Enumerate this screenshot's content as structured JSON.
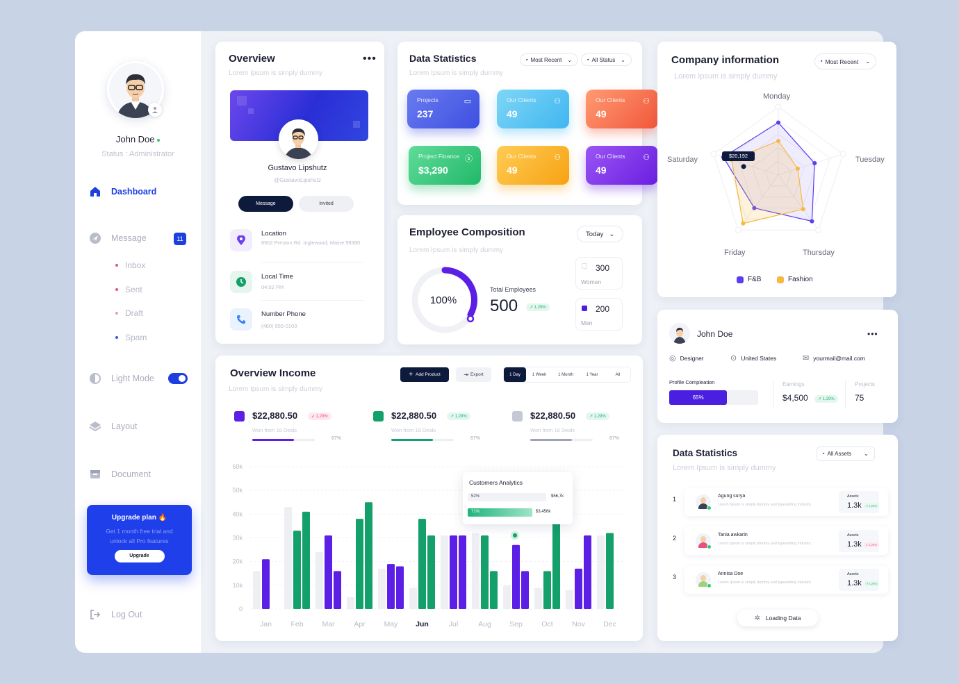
{
  "profile": {
    "name": "John Doe",
    "status": "Status : Administrator"
  },
  "nav": {
    "dashboard": "Dashboard",
    "message": "Message",
    "message_count": "11",
    "sub": [
      "Inbox",
      "Sent",
      "Draft",
      "Spam"
    ],
    "light_mode": "Light Mode",
    "layout": "Layout",
    "document": "Document",
    "logout": "Log Out"
  },
  "upgrade": {
    "title": "Upgrade plan 🔥",
    "text": "Get 1 month free trial and unlock all Pro features",
    "button": "Upgrade"
  },
  "overview": {
    "title": "Overview",
    "subtitle": "Lorem Ipsum is simply dummy",
    "name": "Gustavo Lipshutz",
    "handle": "@GustavoLipshutz",
    "btn_message": "Message",
    "btn_invited": "Invited",
    "location_label": "Location",
    "location_value": "8502 Preston Rd. Inglewood, Maine 98380",
    "time_label": "Local Time",
    "time_value": "04:02 PM",
    "phone_label": "Number Phone",
    "phone_value": "(480) 555-0103"
  },
  "data_stats": {
    "title": "Data Statistics",
    "subtitle": "Lorem Ipsum is simply dummy",
    "filter1": "Most Recent",
    "filter2": "All Status",
    "tiles": [
      {
        "label": "Projects",
        "value": "237"
      },
      {
        "label": "Our Clients",
        "value": "49"
      },
      {
        "label": "Our Clients",
        "value": "49"
      },
      {
        "label": "Project Finance",
        "value": "$3,290"
      },
      {
        "label": "Our Clients",
        "value": "49"
      },
      {
        "label": "Our Clients",
        "value": "49"
      }
    ]
  },
  "employee": {
    "title": "Employee Composition",
    "subtitle": "Lorem Ipsum is simply dummy",
    "filter": "Today",
    "percent": "100%",
    "total_label": "Total Employees",
    "total": "500",
    "change": "↗ 1,29%",
    "women": "300",
    "women_label": "Women",
    "men": "200",
    "men_label": "Men"
  },
  "income": {
    "title": "Overview Income",
    "subtitle": "Lorem Ipsum is simply dummy",
    "add_product": "Add Product",
    "export": "Export",
    "ranges": [
      "1 Day",
      "1 Week",
      "1 Month",
      "1 Year",
      "All"
    ],
    "summaries": [
      {
        "value": "$22,880.50",
        "change": "↙ 1,29%",
        "sub": "Won from 18 Deals",
        "pct": "67%",
        "fill": 0.67
      },
      {
        "value": "$22,880.50",
        "change": "↗ 1,29%",
        "sub": "Won from 18 Deals",
        "pct": "67%",
        "fill": 0.67
      },
      {
        "value": "$22,880.50",
        "change": "↗ 1,29%",
        "sub": "Won from 18 Deals",
        "pct": "67%",
        "fill": 0.67
      }
    ],
    "tooltip": {
      "title": "Customers Analytics",
      "r1_pct": "52%",
      "r1_val": "$56,7k",
      "r2_pct": "71%",
      "r2_val": "$3,456k"
    }
  },
  "chart_data": {
    "type": "bar",
    "categories": [
      "Jan",
      "Feb",
      "Mar",
      "Apr",
      "May",
      "Jun",
      "Jul",
      "Aug",
      "Sep",
      "Oct",
      "Nov",
      "Dec"
    ],
    "yticks": [
      "0",
      "10k",
      "20k",
      "30k",
      "40k",
      "50k",
      "60k"
    ],
    "ylim": [
      0,
      60000
    ],
    "series": [
      {
        "values": [
          16000,
          43000,
          24000,
          5000,
          17000,
          9000,
          31000,
          32000,
          10000,
          9000,
          8000,
          31000
        ]
      },
      {
        "values": [
          21000,
          33000,
          31000,
          38000,
          19000,
          38000,
          31000,
          31000,
          27000,
          16000,
          17000,
          32000
        ]
      },
      {
        "values": [
          0,
          41000,
          16000,
          45000,
          18000,
          31000,
          31000,
          16000,
          16000,
          38000,
          31000,
          0
        ]
      }
    ],
    "highlight": "Jun"
  },
  "company": {
    "title": "Company information",
    "subtitle": "Lorem Ipsum is simply dummy",
    "filter": "Most Recent",
    "axes": [
      "Monday",
      "Tuesday",
      "Thursday",
      "Friday",
      "Saturday"
    ],
    "tooltip": "$20,192",
    "legend": [
      "F&B",
      "Fashion"
    ],
    "colors": {
      "fb": "#5b3cf0",
      "fashion": "#f6b93b"
    }
  },
  "user": {
    "name": "John Doe",
    "role": "Designer",
    "country": "United States",
    "email": "yourmail@mail.com",
    "completion_label": "Profile Compleation",
    "completion": "65%",
    "completion_fill": 0.65,
    "earnings_label": "Earnings",
    "earnings": "$4,500",
    "earnings_change": "↗ 1,29%",
    "projects_label": "Projects",
    "projects": "75"
  },
  "assets": {
    "title": "Data Statistics",
    "subtitle": "Lorem Ipsum is simply dummy",
    "filter": "All Assets",
    "rows": [
      {
        "num": "1",
        "name": "Agung surya",
        "desc": "Lorem Ipsum is simply dummy  and typesetting industry",
        "label": "Assets",
        "value": "1.3k",
        "change": "↗ 1,29%"
      },
      {
        "num": "2",
        "name": "Tania awkarin",
        "desc": "Lorem Ipsum is simply dummy  and typesetting industry",
        "label": "Assets",
        "value": "1.3k",
        "change": "↙ 1,29%"
      },
      {
        "num": "3",
        "name": "Annisa Doe",
        "desc": "Lorem Ipsum is simply dummy  and typesetting industry",
        "label": "Assets",
        "value": "1.3k",
        "change": "↗ 1,29%"
      }
    ],
    "loading": "Loading Data"
  }
}
